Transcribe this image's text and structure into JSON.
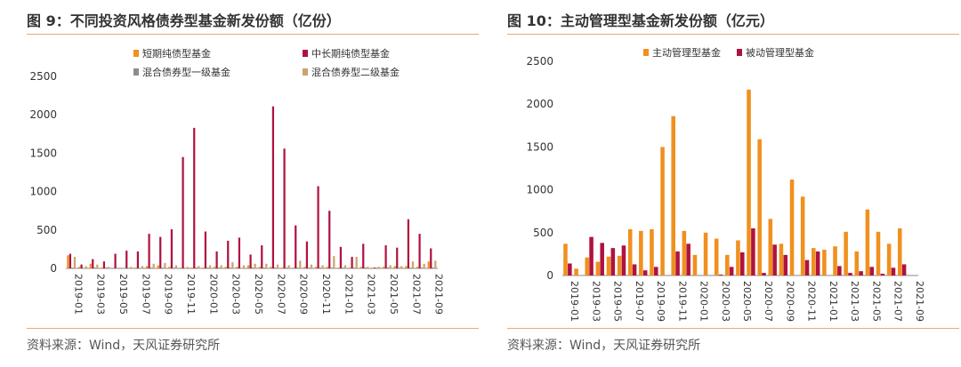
{
  "left": {
    "title": "图 9：不同投资风格债券型基金新发份额（亿份）",
    "source": "资料来源：Wind，天风证券研究所"
  },
  "right": {
    "title": "图 10：主动管理型基金新发份额（亿元）",
    "source": "资料来源：Wind，天风证券研究所"
  },
  "chart_data": [
    {
      "type": "bar",
      "title": "图 9：不同投资风格债券型基金新发份额（亿份）",
      "xlabel": "",
      "ylabel": "",
      "ylim": [
        0,
        2500
      ],
      "yticks": [
        "0",
        "500",
        "1000",
        "1500",
        "2000",
        "2500"
      ],
      "grid": false,
      "legend": "top (two columns)",
      "categories": [
        "2019-01",
        "2019-02",
        "2019-03",
        "2019-04",
        "2019-05",
        "2019-06",
        "2019-07",
        "2019-08",
        "2019-09",
        "2019-10",
        "2019-11",
        "2019-12",
        "2020-01",
        "2020-02",
        "2020-03",
        "2020-04",
        "2020-05",
        "2020-06",
        "2020-07",
        "2020-08",
        "2020-09",
        "2020-10",
        "2020-11",
        "2020-12",
        "2021-01",
        "2021-02",
        "2021-03",
        "2021-04",
        "2021-05",
        "2021-06",
        "2021-07",
        "2021-08",
        "2021-09"
      ],
      "tick_labels": [
        "2019-01",
        "2019-03",
        "2019-05",
        "2019-07",
        "2019-09",
        "2019-11",
        "2020-01",
        "2020-03",
        "2020-05",
        "2020-07",
        "2020-09",
        "2020-11",
        "2021-01",
        "2021-03",
        "2021-05",
        "2021-07",
        "2021-09"
      ],
      "series": [
        {
          "name": "短期纯债型基金",
          "color": "#f0901e",
          "values": [
            170,
            20,
            60,
            10,
            0,
            0,
            10,
            30,
            40,
            20,
            10,
            10,
            10,
            20,
            20,
            20,
            40,
            20,
            20,
            10,
            10,
            20,
            20,
            20,
            10,
            10,
            20,
            10,
            20,
            30,
            30,
            20,
            90
          ]
        },
        {
          "name": "中长期纯债型基金",
          "color": "#b0123f",
          "values": [
            190,
            50,
            120,
            90,
            190,
            230,
            220,
            450,
            410,
            510,
            1450,
            1830,
            480,
            220,
            360,
            400,
            180,
            300,
            2110,
            1560,
            560,
            350,
            1070,
            750,
            280,
            150,
            320,
            10,
            300,
            270,
            640,
            450,
            260
          ]
        },
        {
          "name": "混合债券型一级基金",
          "color": "#8c8c8c",
          "values": [
            10,
            0,
            10,
            10,
            0,
            0,
            0,
            10,
            10,
            10,
            0,
            10,
            10,
            10,
            10,
            0,
            10,
            10,
            10,
            10,
            10,
            10,
            10,
            10,
            10,
            10,
            10,
            10,
            10,
            10,
            10,
            10,
            10
          ]
        },
        {
          "name": "混合债券型二级基金",
          "color": "#c9a46c",
          "values": [
            150,
            30,
            50,
            20,
            10,
            20,
            30,
            60,
            70,
            40,
            20,
            30,
            40,
            40,
            80,
            40,
            60,
            60,
            50,
            40,
            100,
            50,
            40,
            160,
            40,
            150,
            20,
            20,
            40,
            30,
            90,
            60,
            100
          ]
        }
      ]
    },
    {
      "type": "bar",
      "title": "图 10：主动管理型基金新发份额（亿元）",
      "xlabel": "",
      "ylabel": "",
      "ylim": [
        0,
        2500
      ],
      "yticks": [
        "0",
        "500",
        "1000",
        "1500",
        "2000",
        "2500"
      ],
      "grid": false,
      "legend": "top",
      "categories": [
        "2019-01",
        "2019-02",
        "2019-03",
        "2019-04",
        "2019-05",
        "2019-06",
        "2019-07",
        "2019-08",
        "2019-09",
        "2019-10",
        "2019-11",
        "2019-12",
        "2020-01",
        "2020-02",
        "2020-03",
        "2020-04",
        "2020-05",
        "2020-06",
        "2020-07",
        "2020-08",
        "2020-09",
        "2020-10",
        "2020-11",
        "2020-12",
        "2021-01",
        "2021-02",
        "2021-03",
        "2021-04",
        "2021-05",
        "2021-06",
        "2021-07",
        "2021-08",
        "2021-09"
      ],
      "tick_labels": [
        "2019-01",
        "2019-03",
        "2019-05",
        "2019-07",
        "2019-09",
        "2019-11",
        "2020-01",
        "2020-03",
        "2020-05",
        "2020-07",
        "2020-09",
        "2020-11",
        "2021-01",
        "2021-03",
        "2021-05",
        "2021-07",
        "2021-09"
      ],
      "series": [
        {
          "name": "主动管理型基金",
          "color": "#f0901e",
          "values": [
            370,
            80,
            210,
            160,
            220,
            230,
            540,
            520,
            540,
            1500,
            1860,
            520,
            240,
            500,
            430,
            240,
            410,
            2170,
            1590,
            660,
            370,
            1120,
            920,
            320,
            300,
            340,
            510,
            280,
            770,
            510,
            370,
            550,
            0
          ]
        },
        {
          "name": "被动管理型基金",
          "color": "#b0123f",
          "values": [
            140,
            0,
            450,
            380,
            320,
            350,
            130,
            60,
            100,
            0,
            280,
            370,
            0,
            0,
            10,
            100,
            270,
            550,
            30,
            360,
            240,
            0,
            180,
            280,
            0,
            110,
            30,
            50,
            100,
            20,
            90,
            130,
            0
          ]
        }
      ]
    }
  ]
}
